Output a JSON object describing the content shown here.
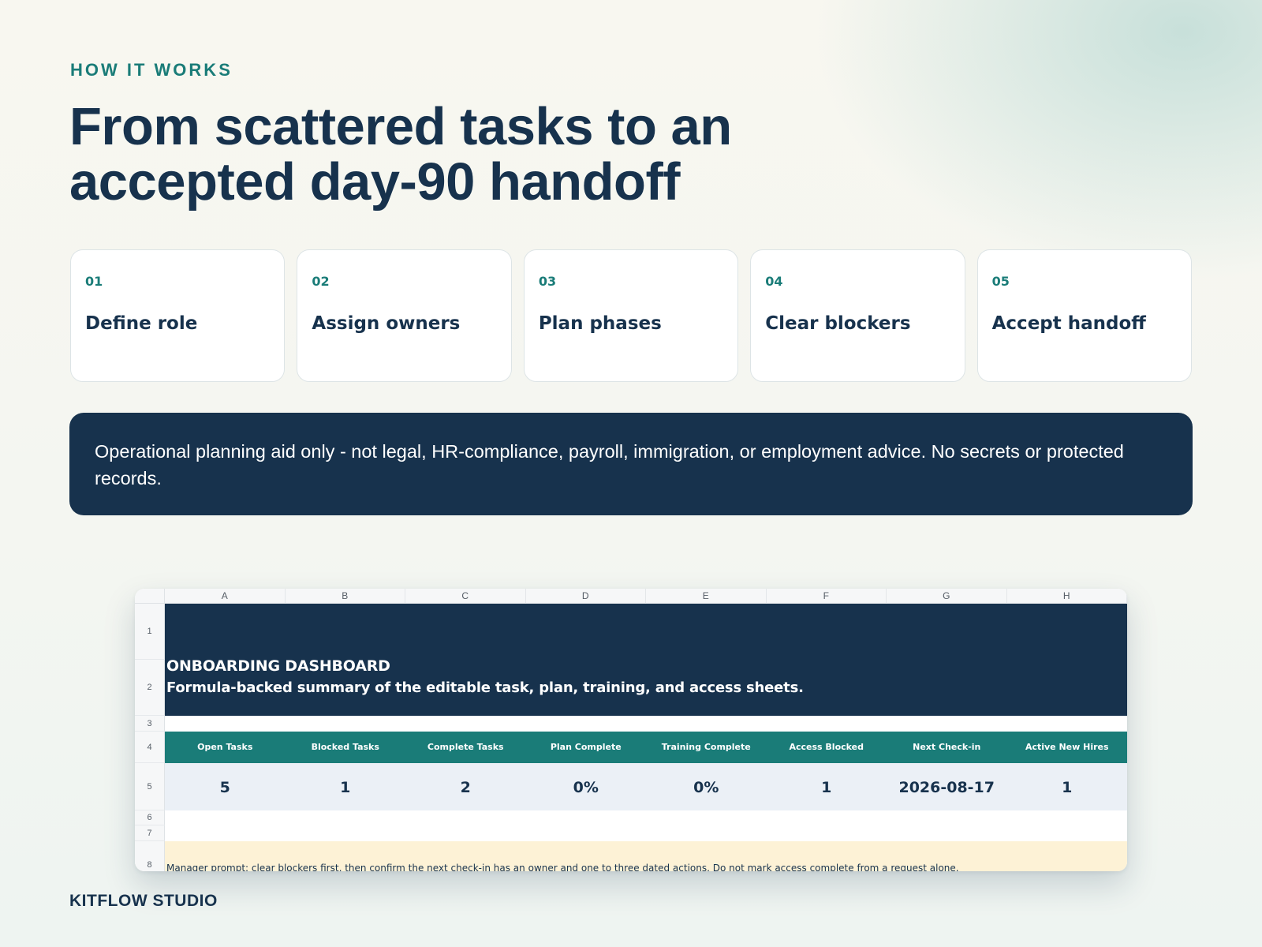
{
  "eyebrow": "HOW IT WORKS",
  "headline": {
    "line1": "From scattered tasks to an",
    "line2": "accepted day-90 handoff"
  },
  "steps": [
    {
      "num": "01",
      "title": "Define role"
    },
    {
      "num": "02",
      "title": "Assign owners"
    },
    {
      "num": "03",
      "title": "Plan phases"
    },
    {
      "num": "04",
      "title": "Clear blockers"
    },
    {
      "num": "05",
      "title": "Accept handoff"
    }
  ],
  "notice": "Operational planning aid only - not legal, HR-compliance, payroll, immigration, or employment advice. No secrets or protected records.",
  "sheet": {
    "columns": [
      "A",
      "B",
      "C",
      "D",
      "E",
      "F",
      "G",
      "H"
    ],
    "rows": [
      "1",
      "2",
      "3",
      "4",
      "5",
      "6",
      "7",
      "8"
    ],
    "title": "ONBOARDING DASHBOARD",
    "subtitle": "Formula-backed summary of the editable task, plan, training, and access sheets.",
    "kpi_labels": [
      "Open Tasks",
      "Blocked Tasks",
      "Complete Tasks",
      "Plan Complete",
      "Training Complete",
      "Access Blocked",
      "Next Check-in",
      "Active New Hires"
    ],
    "kpi_values": [
      "5",
      "1",
      "2",
      "0%",
      "0%",
      "1",
      "2026-08-17",
      "1"
    ],
    "prompt": "Manager prompt: clear blockers first, then confirm the next check-in has an owner and one to three dated actions. Do not mark access complete from a request alone."
  },
  "brand": "KITFLOW STUDIO",
  "colors": {
    "navy": "#17324d",
    "teal": "#1a7c78",
    "kpi_value_bg": "#ebf0f6",
    "prompt_bg": "#fdf2d6"
  }
}
